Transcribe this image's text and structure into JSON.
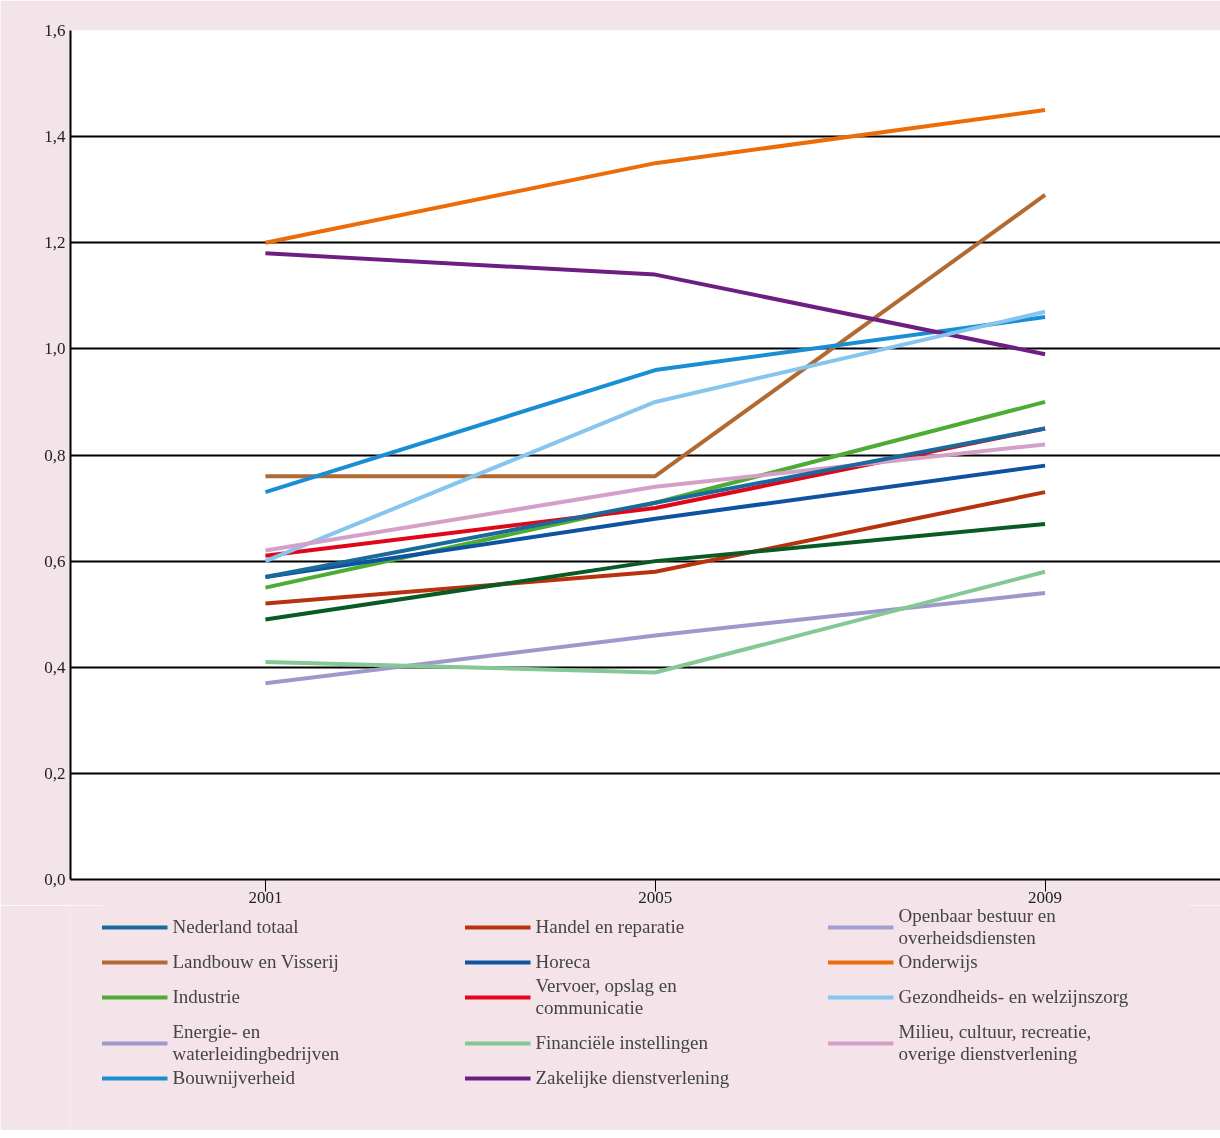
{
  "chart_data": {
    "type": "line",
    "x": [
      2001,
      2005,
      2009
    ],
    "xlim": [
      1999,
      2010.8
    ],
    "xticks": [
      2001,
      2005,
      2009
    ],
    "ylim": [
      0,
      1.6
    ],
    "yticks": [
      {
        "value": 0,
        "label": "0,0"
      },
      {
        "value": 0.2,
        "label": "0,2"
      },
      {
        "value": 0.4,
        "label": "0,4"
      },
      {
        "value": 0.6,
        "label": "0,6"
      },
      {
        "value": 0.8,
        "label": "0,8"
      },
      {
        "value": 1.0,
        "label": "1,0"
      },
      {
        "value": 1.2,
        "label": "1,2"
      },
      {
        "value": 1.4,
        "label": "1,4"
      },
      {
        "value": 1.6,
        "label": "1,6"
      }
    ],
    "grid": "y",
    "legend": "bottom",
    "line_style": "solid",
    "marker": "none",
    "series": [
      {
        "name": "Nederland totaal",
        "color": "#1a6a9c",
        "values": [
          0.57,
          0.71,
          0.85
        ]
      },
      {
        "name": "Landbouw en Visserij",
        "color": "#b06a32",
        "values": [
          0.76,
          0.76,
          1.29
        ]
      },
      {
        "name": "Industrie",
        "color": "#4cac34",
        "values": [
          0.55,
          0.71,
          0.9
        ]
      },
      {
        "name": "Energie- en waterleidingbedrijven",
        "color": "#9e98cc",
        "values": [
          0.37,
          0.46,
          0.54
        ]
      },
      {
        "name": "Bouwnijverheid",
        "color": "#1a8ed4",
        "values": [
          0.73,
          0.96,
          1.06
        ]
      },
      {
        "name": "Handel en reparatie",
        "color": "#b8320e",
        "values": [
          0.52,
          0.58,
          0.73
        ]
      },
      {
        "name": "Horeca",
        "color": "#0e52a0",
        "values": [
          0.57,
          0.68,
          0.78
        ]
      },
      {
        "name": "Vervoer, opslag en communicatie",
        "color": "#e2061a",
        "values": [
          0.61,
          0.7,
          0.85
        ]
      },
      {
        "name": "Financiële instellingen",
        "color": "#84c896",
        "values": [
          0.41,
          0.39,
          0.58
        ]
      },
      {
        "name": "Zakelijke dienstverlening",
        "color": "#6e1e82",
        "values": [
          1.18,
          1.14,
          0.99
        ]
      },
      {
        "name": "Openbaar bestuur en overheidsdiensten",
        "color": "#a29ed2",
        "values": [
          null,
          null,
          null
        ]
      },
      {
        "name": "Onderwijs",
        "color": "#ec6c0a",
        "values": [
          1.2,
          1.35,
          1.45
        ]
      },
      {
        "name": "Gezondheids- en welzijnszorg",
        "color": "#86c6ee",
        "values": [
          0.6,
          0.9,
          1.07
        ]
      },
      {
        "name": "Milieu, cultuur, recreatie, overige dienstverlening",
        "color": "#d4a0c8",
        "values": [
          0.62,
          0.74,
          0.82
        ]
      },
      {
        "color": "#0a5a24",
        "values": [
          0.49,
          0.6,
          0.67
        ]
      }
    ]
  }
}
